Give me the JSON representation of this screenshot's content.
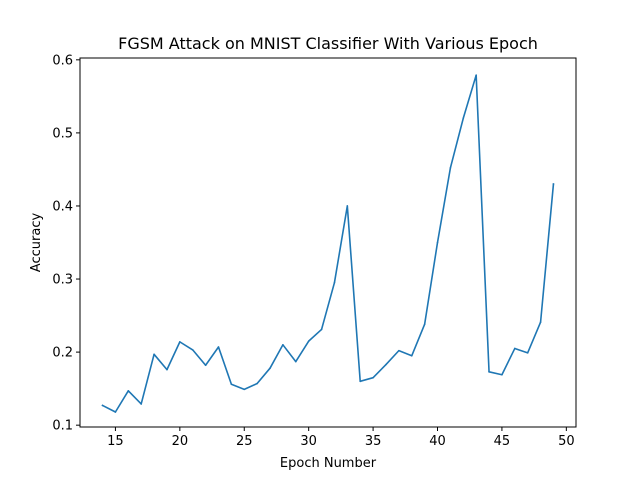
{
  "chart_data": {
    "type": "line",
    "title": "FGSM Attack on MNIST Classifier With Various Epoch",
    "xlabel": "Epoch Number",
    "ylabel": "Accuracy",
    "xlim": [
      12.25,
      50.75
    ],
    "ylim": [
      0.0975,
      0.6025
    ],
    "xticks": [
      15,
      20,
      25,
      30,
      35,
      40,
      45,
      50
    ],
    "yticks": [
      0.1,
      0.2,
      0.3,
      0.4,
      0.5,
      0.6
    ],
    "xtick_labels": [
      "15",
      "20",
      "25",
      "30",
      "35",
      "40",
      "45",
      "50"
    ],
    "ytick_labels": [
      "0.1",
      "0.2",
      "0.3",
      "0.4",
      "0.5",
      "0.6"
    ],
    "grid": false,
    "series": [
      {
        "color": "#1f77b4",
        "x": [
          14,
          15,
          16,
          17,
          18,
          19,
          20,
          21,
          22,
          23,
          24,
          25,
          26,
          27,
          28,
          29,
          30,
          31,
          32,
          33,
          34,
          35,
          36,
          37,
          38,
          39,
          40,
          41,
          42,
          43,
          44,
          45,
          46,
          47,
          48,
          49
        ],
        "y": [
          0.127,
          0.118,
          0.147,
          0.129,
          0.197,
          0.176,
          0.214,
          0.203,
          0.182,
          0.207,
          0.156,
          0.149,
          0.157,
          0.178,
          0.21,
          0.187,
          0.215,
          0.231,
          0.295,
          0.4,
          0.16,
          0.165,
          0.183,
          0.202,
          0.195,
          0.238,
          0.35,
          0.452,
          0.52,
          0.579,
          0.173,
          0.169,
          0.205,
          0.199,
          0.241,
          0.43
        ]
      }
    ]
  }
}
